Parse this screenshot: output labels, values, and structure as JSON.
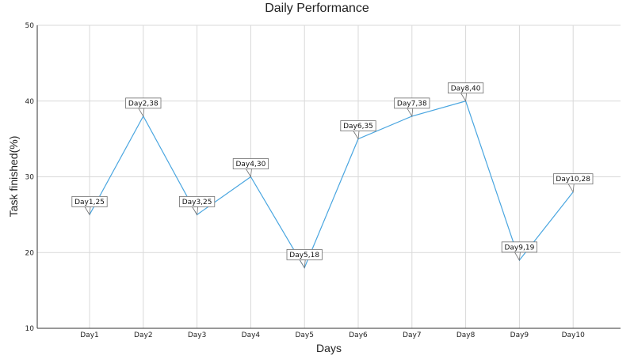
{
  "chart_data": {
    "type": "line",
    "title": "Daily Performance",
    "xlabel": "Days",
    "ylabel": "Task finished(%)",
    "categories": [
      "Day1",
      "Day2",
      "Day3",
      "Day4",
      "Day5",
      "Day6",
      "Day7",
      "Day8",
      "Day9",
      "Day10"
    ],
    "series": [
      {
        "values": [
          25,
          38,
          25,
          30,
          18,
          35,
          38,
          40,
          19,
          28
        ],
        "color": "#4aa6e0"
      }
    ],
    "data_labels": [
      "Day1,25",
      "Day2,38",
      "Day3,25",
      "Day4,30",
      "Day5,18",
      "Day6,35",
      "Day7,38",
      "Day8,40",
      "Day9,19",
      "Day10,28"
    ],
    "ylim": [
      10,
      50
    ],
    "yticks": [
      10,
      20,
      30,
      40,
      50
    ],
    "grid": true,
    "legend": "none"
  }
}
